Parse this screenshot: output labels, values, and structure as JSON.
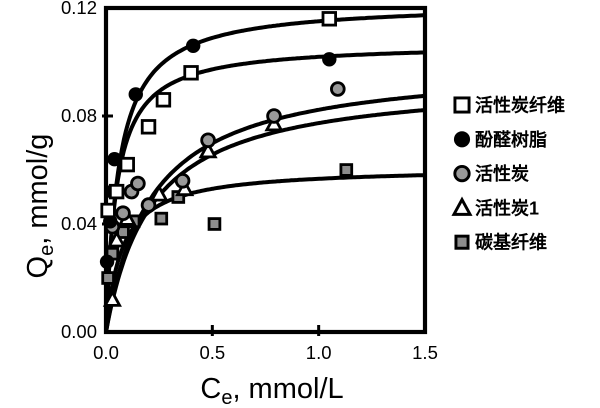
{
  "figure": {
    "background": "#ffffff",
    "ink": "#000000",
    "gray_circle_fill": "#999999",
    "gray_square_fill": "#8c8c8c"
  },
  "chart_data": {
    "type": "scatter",
    "title": "",
    "xlabel": {
      "base": "C",
      "sub": "e",
      "suffix": ", mmol/L"
    },
    "ylabel": {
      "base": "Q",
      "sub": "e",
      "suffix": ", mmol/g"
    },
    "xlim": [
      0,
      1.5
    ],
    "ylim": [
      0,
      0.12
    ],
    "grid": false,
    "legend_position": "right-outside",
    "x_ticks": [
      {
        "value": 0.0,
        "label": "0.0"
      },
      {
        "value": 0.5,
        "label": "0.5"
      },
      {
        "value": 1.0,
        "label": "1.0"
      },
      {
        "value": 1.5,
        "label": "1.5"
      }
    ],
    "y_ticks": [
      {
        "value": 0.0,
        "label": "0.00"
      },
      {
        "value": 0.04,
        "label": "0.04"
      },
      {
        "value": 0.08,
        "label": "0.08"
      },
      {
        "value": 0.12,
        "label": "0.12"
      }
    ],
    "series": [
      {
        "id": "acf",
        "name": "活性炭纤维",
        "marker": "square-open",
        "points": [
          [
            0.01,
            0.045
          ],
          [
            0.05,
            0.052
          ],
          [
            0.1,
            0.062
          ],
          [
            0.2,
            0.076
          ],
          [
            0.27,
            0.086
          ],
          [
            0.4,
            0.096
          ],
          [
            1.05,
            0.116
          ]
        ],
        "fit": {
          "model": "langmuir",
          "qmax": 0.107,
          "k": 0.05
        }
      },
      {
        "id": "resin",
        "name": "酚醛树脂",
        "marker": "circle-filled",
        "points": [
          [
            0.005,
            0.026
          ],
          [
            0.02,
            0.041
          ],
          [
            0.03,
            0.052
          ],
          [
            0.04,
            0.064
          ],
          [
            0.14,
            0.088
          ],
          [
            0.41,
            0.106
          ],
          [
            1.05,
            0.101
          ]
        ],
        "fit": {
          "model": "langmuir",
          "qmax": 0.122,
          "k": 0.06
        }
      },
      {
        "id": "ac",
        "name": "活性炭",
        "marker": "circle-gray",
        "points": [
          [
            0.03,
            0.039
          ],
          [
            0.08,
            0.044
          ],
          [
            0.12,
            0.052
          ],
          [
            0.15,
            0.055
          ],
          [
            0.2,
            0.047
          ],
          [
            0.36,
            0.056
          ],
          [
            0.48,
            0.071
          ],
          [
            0.79,
            0.08
          ],
          [
            1.09,
            0.09
          ]
        ],
        "fit": {
          "model": "langmuir",
          "qmax": 0.1,
          "k": 0.215
        }
      },
      {
        "id": "ac1",
        "name": "活性炭1",
        "marker": "triangle-open",
        "points": [
          [
            0.03,
            0.012
          ],
          [
            0.05,
            0.034
          ],
          [
            0.1,
            0.042
          ],
          [
            0.25,
            0.051
          ],
          [
            0.37,
            0.053
          ],
          [
            0.48,
            0.067
          ],
          [
            0.79,
            0.077
          ]
        ],
        "fit": {
          "model": "langmuir",
          "qmax": 0.094,
          "k": 0.215
        }
      },
      {
        "id": "cf",
        "name": "碳基纤维",
        "points": [
          [
            0.01,
            0.02
          ],
          [
            0.03,
            0.029
          ],
          [
            0.08,
            0.037
          ],
          [
            0.13,
            0.041
          ],
          [
            0.26,
            0.042
          ],
          [
            0.34,
            0.05
          ],
          [
            0.51,
            0.04
          ],
          [
            1.13,
            0.06
          ]
        ],
        "marker": "square-gray",
        "fit": {
          "model": "langmuir",
          "qmax": 0.061,
          "k": 0.075
        }
      }
    ]
  }
}
